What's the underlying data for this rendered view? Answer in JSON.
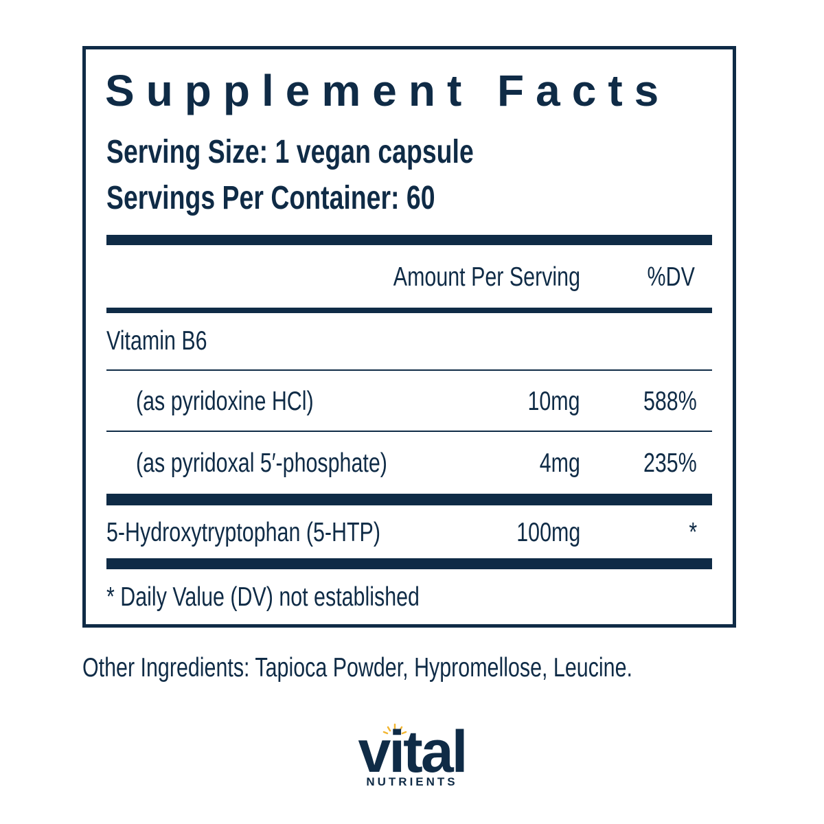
{
  "title": "Supplement Facts",
  "serving_size": "Serving Size: 1 vegan capsule",
  "servings_per_container": "Servings Per Container: 60",
  "table": {
    "header": {
      "amount": "Amount Per Serving",
      "dv": "%DV"
    },
    "rows": [
      {
        "name": "Vitamin B6"
      },
      {
        "name": "(as pyridoxine HCl)",
        "amount": "10mg",
        "dv": "588%"
      },
      {
        "name": "(as pyridoxal 5′-phosphate)",
        "amount": "4mg",
        "dv": "235%"
      },
      {
        "name": "5-Hydroxytryptophan (5-HTP)",
        "amount": "100mg",
        "dv": "*"
      }
    ]
  },
  "footnote": "* Daily Value (DV) not established",
  "other_ingredients": "Other Ingredients: Tapioca Powder, Hypromellose, Leucine.",
  "logo": {
    "name": "vital",
    "tagline": "NUTRIENTS"
  }
}
